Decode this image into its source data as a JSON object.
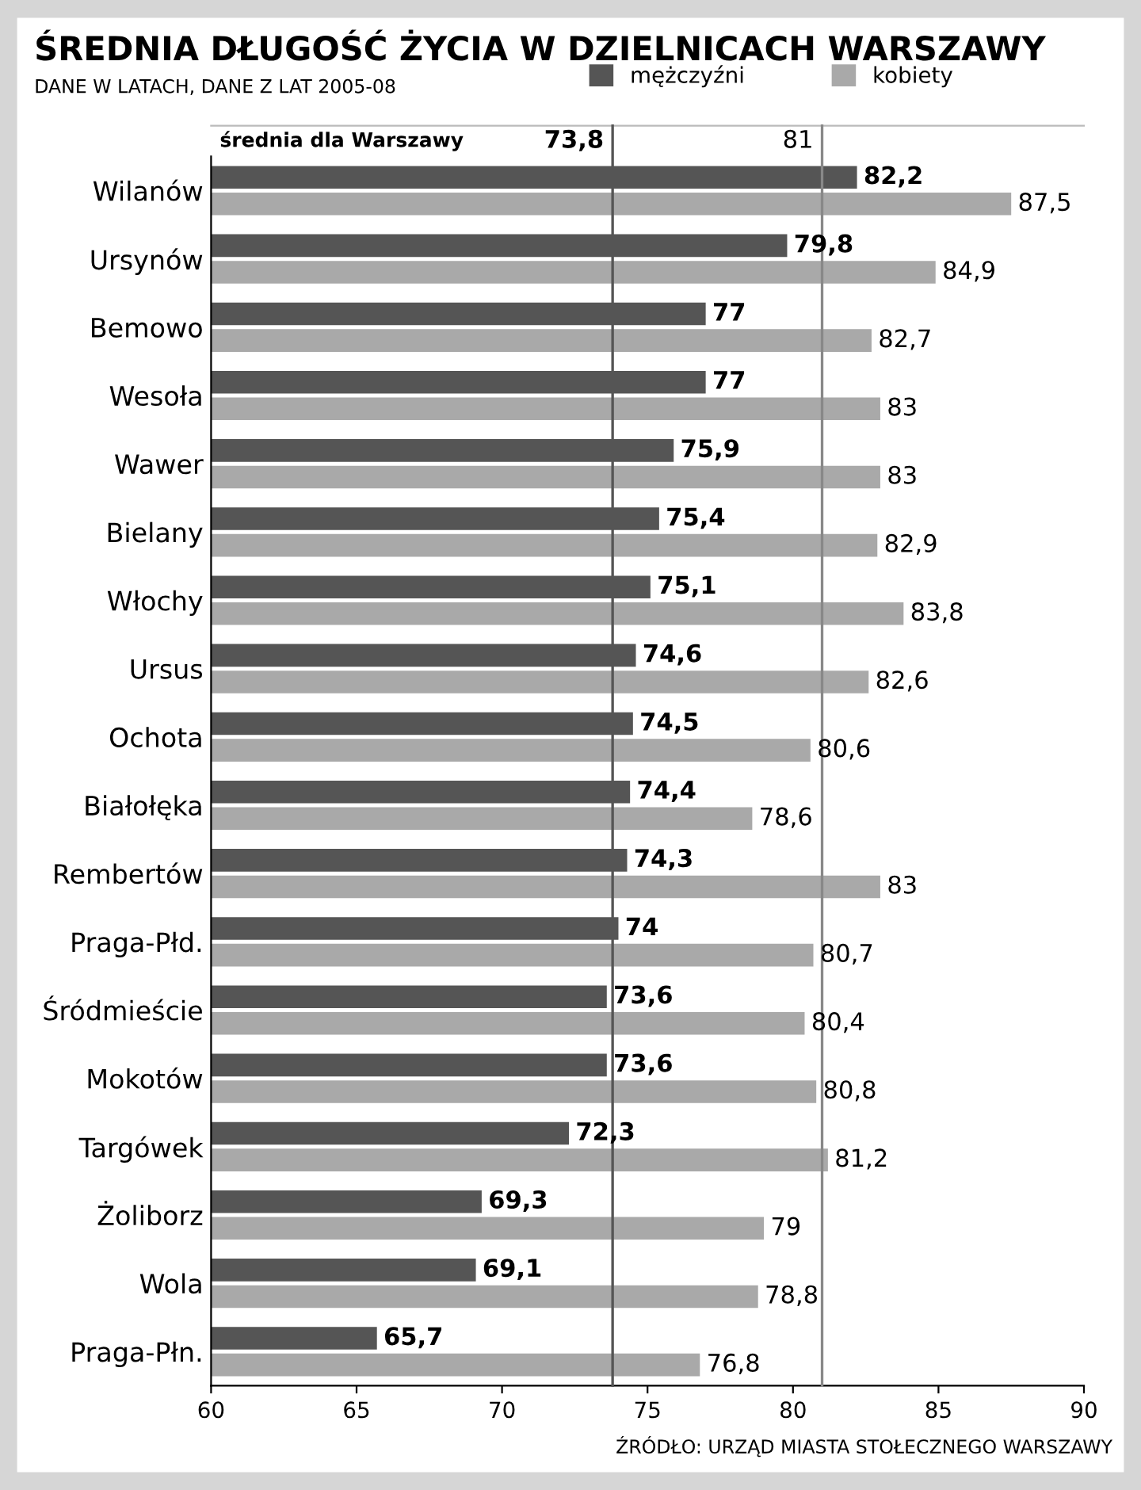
{
  "chart_data": {
    "type": "bar",
    "orientation": "horizontal",
    "title": "ŚREDNIA DŁUGOŚĆ ŻYCIA W DZIELNICACH WARSZAWY",
    "subtitle": "DANE W LATACH, DANE Z LAT 2005-08",
    "categories": [
      "Wilanów",
      "Ursynów",
      "Bemowo",
      "Wesoła",
      "Wawer",
      "Bielany",
      "Włochy",
      "Ursus",
      "Ochota",
      "Białołęka",
      "Rembertów",
      "Praga-Płd.",
      "Śródmieście",
      "Mokotów",
      "Targówek",
      "Żoliborz",
      "Wola",
      "Praga-Płn."
    ],
    "series": [
      {
        "name": "mężczyźni",
        "color": "#555555",
        "values": [
          82.2,
          79.8,
          77,
          77,
          75.9,
          75.4,
          75.1,
          74.6,
          74.5,
          74.4,
          74.3,
          74,
          73.6,
          73.6,
          72.3,
          69.3,
          69.1,
          65.7
        ],
        "value_labels": [
          "82,2",
          "79,8",
          "77",
          "77",
          "75,9",
          "75,4",
          "75,1",
          "74,6",
          "74,5",
          "74,4",
          "74,3",
          "74",
          "73,6",
          "73,6",
          "72,3",
          "69,3",
          "69,1",
          "65,7"
        ]
      },
      {
        "name": "kobiety",
        "color": "#a9a9a9",
        "values": [
          87.5,
          84.9,
          82.7,
          83,
          83,
          82.9,
          83.8,
          82.6,
          80.6,
          78.6,
          83,
          80.7,
          80.4,
          80.8,
          81.2,
          79,
          78.8,
          76.8
        ],
        "value_labels": [
          "87,5",
          "84,9",
          "82,7",
          "83",
          "83",
          "82,9",
          "83,8",
          "82,6",
          "80,6",
          "78,6",
          "83",
          "80,7",
          "80,4",
          "80,8",
          "81,2",
          "79",
          "78,8",
          "76,8"
        ]
      }
    ],
    "xlim": [
      60,
      90
    ],
    "xticks": [
      60,
      65,
      70,
      75,
      80,
      85,
      90
    ],
    "ref_lines": [
      {
        "axis": "x",
        "value": 73.8,
        "label": "73,8",
        "color": "#555555"
      },
      {
        "axis": "x",
        "value": 81,
        "label": "81",
        "color": "#888888"
      }
    ],
    "annotations": [
      "średnia dla Warszawy",
      "ŹRÓDŁO: URZĄD MIASTA STOŁECZNEGO WARSZAWY"
    ],
    "legend": "top",
    "grid": false
  }
}
